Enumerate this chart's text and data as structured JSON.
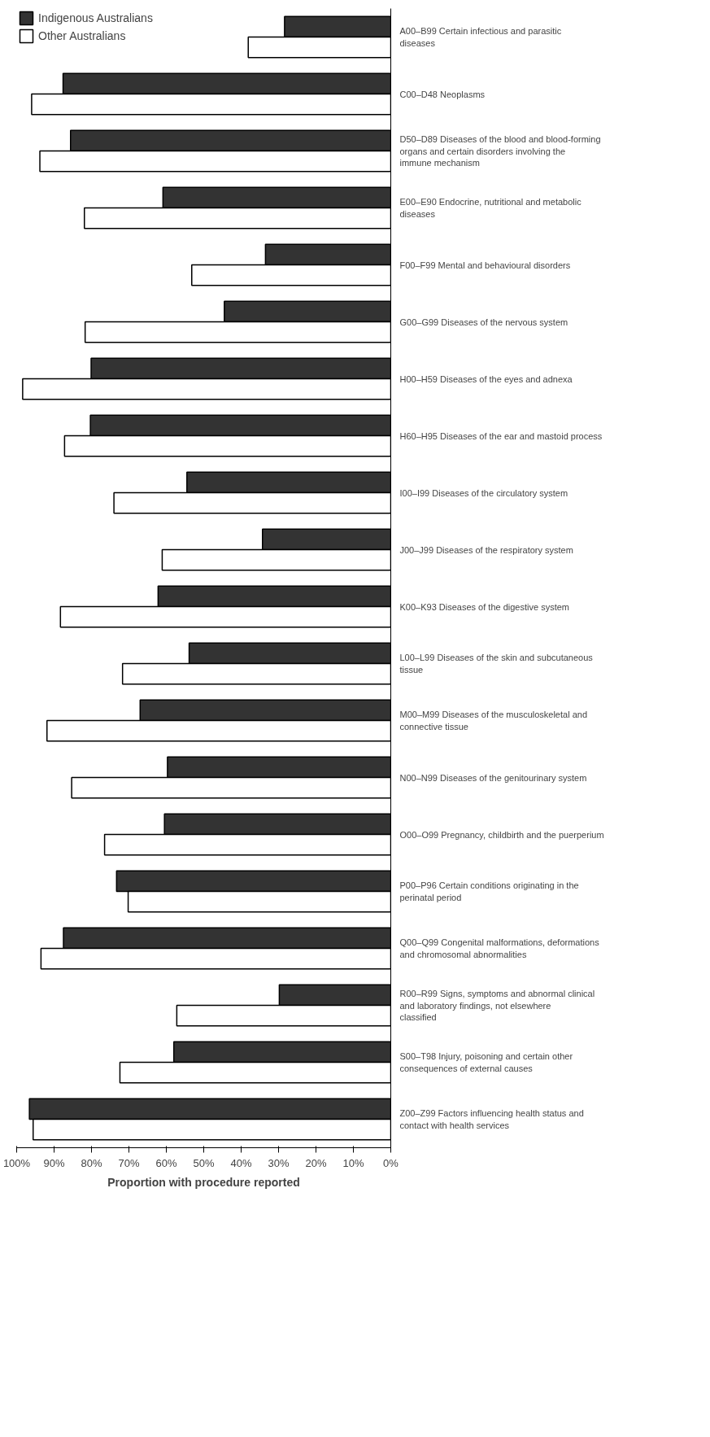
{
  "chart_data": {
    "type": "bar",
    "orientation": "horizontal",
    "xlabel": "Proportion with procedure reported",
    "categories": [
      "A00–B99 Certain infectious and parasitic diseases",
      "C00–D48 Neoplasms",
      "D50–D89 Diseases of the blood and blood-forming organs and certain disorders involving the immune mechanism",
      "E00–E90 Endocrine, nutritional and metabolic diseases",
      "F00–F99 Mental and behavioural disorders",
      "G00–G99 Diseases of the nervous system",
      "H00–H59 Diseases of the eyes and adnexa",
      "H60–H95 Diseases of the ear and mastoid process",
      "I00–I99 Diseases of the circulatory system",
      "J00–J99 Diseases of the respiratory system",
      "K00–K93 Diseases of the digestive system",
      "L00–L99 Diseases of the skin and subcutaneous tissue",
      "M00–M99 Diseases of the musculoskeletal and connective tissue",
      "N00–N99 Diseases of the genitourinary system",
      "O00–O99 Pregnancy, childbirth and the puerperium",
      "P00–P96 Certain conditions originating in the perinatal period",
      "Q00–Q99 Congenital malformations, deformations and chromosomal abnormalities",
      "R00–R99 Signs, symptoms and abnormal clinical and laboratory findings, not elsewhere classified",
      "S00–T98 Injury, poisoning and certain other consequences of external causes",
      "Z00–Z99 Factors influencing health status and contact with health services"
    ],
    "series": [
      {
        "name": "Indigenous Australians",
        "color": "#333333",
        "values": [
          28.4,
          87.6,
          85.6,
          60.9,
          33.5,
          44.5,
          80.1,
          80.3,
          54.5,
          34.3,
          62.2,
          53.9,
          67.0,
          59.7,
          60.5,
          73.3,
          87.5,
          29.8,
          58.0,
          96.6
        ]
      },
      {
        "name": "Other Australians",
        "color": "#ffffff",
        "values": [
          38.1,
          96.0,
          93.8,
          81.9,
          53.2,
          81.7,
          98.4,
          87.2,
          74.0,
          61.1,
          88.3,
          71.7,
          91.9,
          85.3,
          76.5,
          70.2,
          93.5,
          57.2,
          72.4,
          95.6
        ]
      }
    ],
    "xlim": [
      100,
      0
    ],
    "xticks": [
      {
        "value": 100,
        "label": "100%"
      },
      {
        "value": 90,
        "label": "90%"
      },
      {
        "value": 80,
        "label": "80%"
      },
      {
        "value": 70,
        "label": "70%"
      },
      {
        "value": 60,
        "label": "60%"
      },
      {
        "value": 50,
        "label": "50%"
      },
      {
        "value": 40,
        "label": "40%"
      },
      {
        "value": 30,
        "label": "30%"
      },
      {
        "value": 20,
        "label": "20%"
      },
      {
        "value": 10,
        "label": "10%"
      },
      {
        "value": 0,
        "label": "0%"
      }
    ],
    "grid": false,
    "legend": "top left"
  }
}
